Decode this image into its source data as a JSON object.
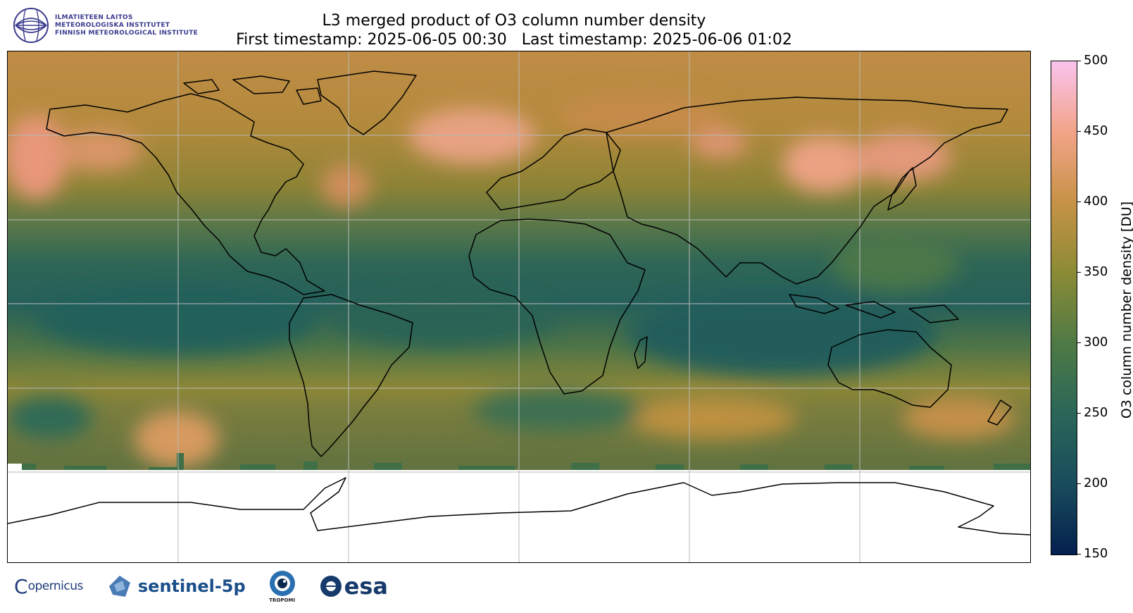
{
  "header": {
    "institute_lines": [
      "ILMATIETEEN LAITOS",
      "METEOROLOGISKA INSTITUTET",
      "FINNISH METEOROLOGICAL INSTITUTE"
    ],
    "title_line1": "L3 merged product of O3 column number density",
    "title_line2": "First timestamp: 2025-06-05 00:30   Last timestamp: 2025-06-06 01:02"
  },
  "colorbar": {
    "label": "O3 column number density [DU]",
    "min": 150,
    "max": 500,
    "ticks": [
      "150",
      "200",
      "250",
      "300",
      "350",
      "400",
      "450",
      "500"
    ],
    "colors": [
      "#04204f",
      "#194c5b",
      "#2a6658",
      "#4f7a45",
      "#8b8b35",
      "#c79247",
      "#f2a488",
      "#f9c3ed"
    ]
  },
  "map": {
    "projection": "plate-carree",
    "gridlines": true,
    "grid_lon_step_deg": 60,
    "grid_lat_step_deg": 30,
    "missing_data_region": "south of ~65S (white)"
  },
  "footer": {
    "copernicus": "opernicus",
    "copernicus_c": "C",
    "sentinel": "sentinel-5p",
    "tropomi": "TROPOMI",
    "esa": "esa"
  }
}
